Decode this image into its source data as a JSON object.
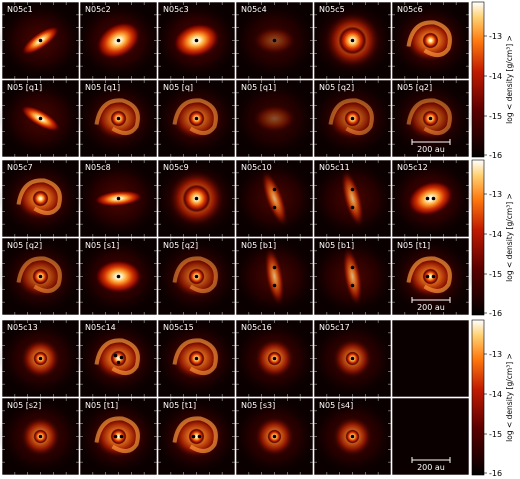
{
  "figure": {
    "blocks": [
      {
        "panels": [
          {
            "label": "N05c1",
            "kind": "elong",
            "stars": 1,
            "angle": -35,
            "intensity": 0.75
          },
          {
            "label": "N05c2",
            "kind": "disk",
            "stars": 1,
            "angle": -30,
            "intensity": 0.95
          },
          {
            "label": "N05c3",
            "kind": "disk",
            "stars": 1,
            "angle": -15,
            "intensity": 1.0
          },
          {
            "label": "N05c4",
            "kind": "faint",
            "stars": 1,
            "angle": 20,
            "intensity": 0.45
          },
          {
            "label": "N05c5",
            "kind": "bright",
            "stars": 1,
            "angle": 0,
            "intensity": 1.0
          },
          {
            "label": "N05c6",
            "kind": "spiral",
            "stars": 0,
            "angle": 0,
            "intensity": 0.9
          },
          {
            "label": "N05 [q1]",
            "kind": "elong",
            "stars": 1,
            "angle": 30,
            "intensity": 0.75
          },
          {
            "label": "N05 [q1]",
            "kind": "spiral",
            "stars": 1,
            "angle": 0,
            "intensity": 0.75
          },
          {
            "label": "N05 [q]",
            "kind": "spiral",
            "stars": 1,
            "angle": 10,
            "intensity": 0.7
          },
          {
            "label": "N05 [q1]",
            "kind": "faint",
            "stars": 0,
            "angle": 0,
            "intensity": 0.35
          },
          {
            "label": "N05 [q2]",
            "kind": "spiral",
            "stars": 1,
            "angle": 0,
            "intensity": 0.6
          },
          {
            "label": "N05 [q2]",
            "kind": "spiral",
            "stars": 1,
            "angle": 0,
            "intensity": 0.6
          }
        ],
        "colorbar": {
          "ticks": [
            "-13",
            "-14",
            "-15",
            "-16"
          ],
          "title": "log < density [g/cm³] >"
        },
        "scalebar": "200 au"
      },
      {
        "panels": [
          {
            "label": "N05c7",
            "kind": "spiral",
            "stars": 0,
            "angle": 0,
            "intensity": 0.85
          },
          {
            "label": "N05c8",
            "kind": "elong",
            "stars": 1,
            "angle": -5,
            "intensity": 0.85
          },
          {
            "label": "N05c9",
            "kind": "bright",
            "stars": 1,
            "angle": 0,
            "intensity": 1.0
          },
          {
            "label": "N05c10",
            "kind": "binary",
            "stars": 2,
            "angle": 70,
            "intensity": 0.7
          },
          {
            "label": "N05c11",
            "kind": "binary",
            "stars": 2,
            "angle": 75,
            "intensity": 0.7
          },
          {
            "label": "N05c12",
            "kind": "disk",
            "stars": 2,
            "angle": -20,
            "intensity": 0.95
          },
          {
            "label": "N05 [q2]",
            "kind": "spiral",
            "stars": 1,
            "angle": 0,
            "intensity": 0.65
          },
          {
            "label": "N05 [s1]",
            "kind": "disk",
            "stars": 1,
            "angle": 0,
            "intensity": 0.8
          },
          {
            "label": "N05 [q2]",
            "kind": "spiral",
            "stars": 1,
            "angle": 0,
            "intensity": 0.65
          },
          {
            "label": "N05 [b1]",
            "kind": "binary",
            "stars": 2,
            "angle": 80,
            "intensity": 0.75
          },
          {
            "label": "N05 [b1]",
            "kind": "binary",
            "stars": 2,
            "angle": 80,
            "intensity": 0.75
          },
          {
            "label": "N05 [t1]",
            "kind": "spiral",
            "stars": 2,
            "angle": 0,
            "intensity": 0.85
          }
        ],
        "colorbar": {
          "ticks": [
            "-13",
            "-14",
            "-15",
            "-16"
          ],
          "title": "log < density [g/cm³] >"
        },
        "scalebar": "200 au"
      },
      {
        "panels": [
          {
            "label": "N05c13",
            "kind": "compact",
            "stars": 1,
            "angle": 0,
            "intensity": 0.75
          },
          {
            "label": "N05c14",
            "kind": "spiral",
            "stars": 3,
            "angle": 0,
            "intensity": 0.85
          },
          {
            "label": "N05c15",
            "kind": "spiral",
            "stars": 1,
            "angle": 0,
            "intensity": 0.8
          },
          {
            "label": "N05c16",
            "kind": "compact",
            "stars": 1,
            "angle": 0,
            "intensity": 0.7
          },
          {
            "label": "N05c17",
            "kind": "compact",
            "stars": 1,
            "angle": 0,
            "intensity": 0.6
          },
          {
            "label": "",
            "kind": "empty",
            "stars": 0,
            "angle": 0,
            "intensity": 0
          },
          {
            "label": "N05 [s2]",
            "kind": "compact",
            "stars": 1,
            "angle": 0,
            "intensity": 0.7
          },
          {
            "label": "N05 [t1]",
            "kind": "spiral",
            "stars": 2,
            "angle": 0,
            "intensity": 0.85
          },
          {
            "label": "N05 [t1]",
            "kind": "spiral",
            "stars": 2,
            "angle": 0,
            "intensity": 0.85
          },
          {
            "label": "N05 [s3]",
            "kind": "compact",
            "stars": 1,
            "angle": 0,
            "intensity": 0.7
          },
          {
            "label": "N05 [s4]",
            "kind": "compact",
            "stars": 1,
            "angle": 0,
            "intensity": 0.65
          },
          {
            "label": "",
            "kind": "empty",
            "stars": 0,
            "angle": 0,
            "intensity": 0
          }
        ],
        "colorbar": {
          "ticks": [
            "-13",
            "-14",
            "-15",
            "-16"
          ],
          "title": "log < density [g/cm³] >"
        },
        "scalebar": "200 au"
      }
    ]
  }
}
